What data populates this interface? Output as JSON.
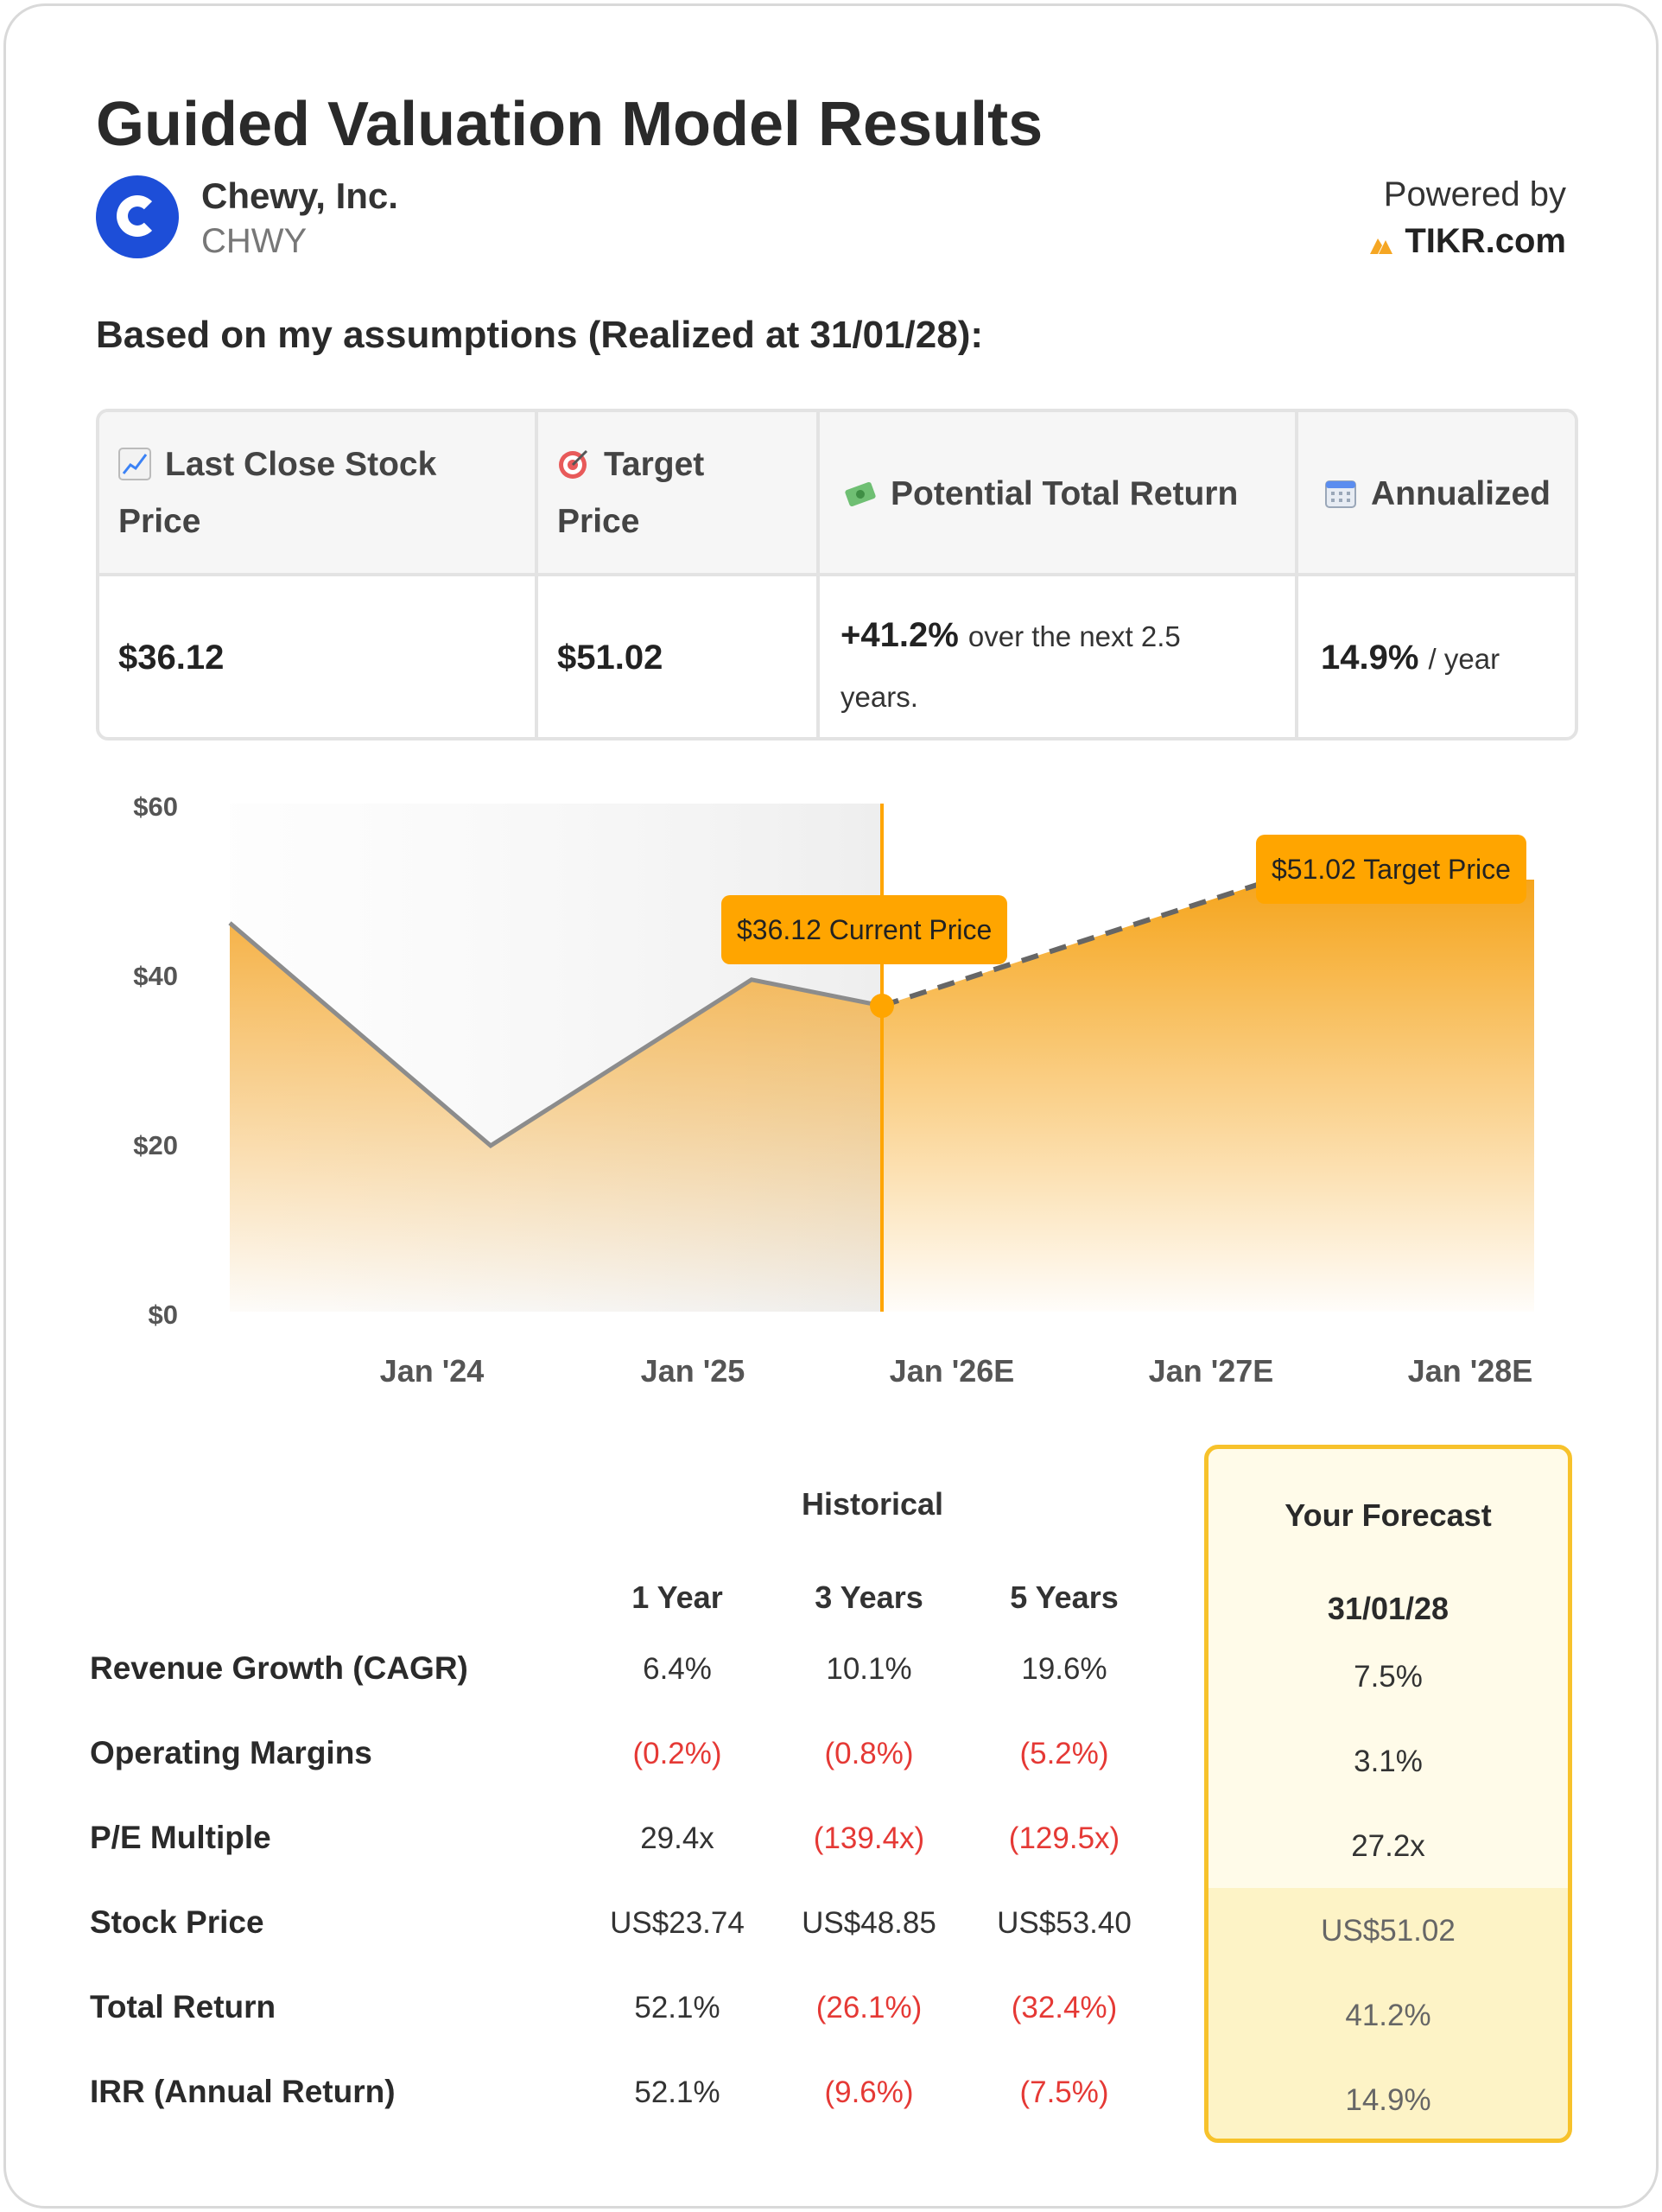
{
  "title": "Guided Valuation Model Results",
  "company": {
    "name": "Chewy, Inc.",
    "ticker": "CHWY"
  },
  "powered": {
    "label": "Powered by",
    "brand": "TIKR.com",
    "brand_color": "#f5a623"
  },
  "assumptions_heading": "Based on my assumptions (Realized at 31/01/28):",
  "summary": {
    "headers": {
      "last_close_line1": "Last Close Stock",
      "last_close_line2": "Price",
      "target_line1": "Target",
      "target_line2": "Price",
      "potential": "Potential Total Return",
      "annualized": "Annualized"
    },
    "icons": [
      "chart-increasing-icon",
      "target-icon",
      "money-flying-icon",
      "calendar-icon"
    ],
    "values": {
      "last_close": "$36.12",
      "target": "$51.02",
      "potential_value": "+41.2%",
      "potential_suffix_line1": "over the next 2.5",
      "potential_suffix_line2": "years.",
      "annualized_value": "14.9%",
      "annualized_suffix": "/ year"
    }
  },
  "chart_data": {
    "type": "area",
    "y_ticks": [
      "$60",
      "$40",
      "$20",
      "$0"
    ],
    "ylim": [
      0,
      60
    ],
    "x_ticks": [
      "Jan '24",
      "Jan '25",
      "Jan '26E",
      "Jan '27E",
      "Jan '28E"
    ],
    "historical": [
      {
        "x": 0.0,
        "y": 45.9
      },
      {
        "x": 1.0,
        "y": 19.6
      },
      {
        "x": 2.0,
        "y": 39.2
      },
      {
        "x": 2.5,
        "y": 36.12
      }
    ],
    "forecast": [
      {
        "x": 2.5,
        "y": 36.12
      },
      {
        "x": 4.0,
        "y": 51.02
      },
      {
        "x": 5.0,
        "y": 51.02
      }
    ],
    "current_price_label": "$36.12 Current Price",
    "target_price_label": "$51.02 Target Price",
    "colors": {
      "accent": "#ffa500",
      "line": "#8c8c8c"
    }
  },
  "metrics": {
    "historical_label": "Historical",
    "columns": [
      "1 Year",
      "3 Years",
      "5 Years"
    ],
    "forecast_title": "Your Forecast",
    "forecast_date": "31/01/28",
    "rows": [
      {
        "label": "Revenue Growth (CAGR)",
        "values": [
          "6.4%",
          "10.1%",
          "19.6%"
        ],
        "neg": [
          false,
          false,
          false
        ],
        "forecast": "7.5%"
      },
      {
        "label": "Operating Margins",
        "values": [
          "(0.2%)",
          "(0.8%)",
          "(5.2%)"
        ],
        "neg": [
          true,
          true,
          true
        ],
        "forecast": "3.1%"
      },
      {
        "label": "P/E Multiple",
        "values": [
          "29.4x",
          "(139.4x)",
          "(129.5x)"
        ],
        "neg": [
          false,
          true,
          true
        ],
        "forecast": "27.2x"
      },
      {
        "label": "Stock Price",
        "values": [
          "US$23.74",
          "US$48.85",
          "US$53.40"
        ],
        "neg": [
          false,
          false,
          false
        ],
        "forecast": "US$51.02"
      },
      {
        "label": "Total Return",
        "values": [
          "52.1%",
          "(26.1%)",
          "(32.4%)"
        ],
        "neg": [
          false,
          true,
          true
        ],
        "forecast": "41.2%"
      },
      {
        "label": "IRR (Annual Return)",
        "values": [
          "52.1%",
          "(9.6%)",
          "(7.5%)"
        ],
        "neg": [
          false,
          true,
          true
        ],
        "forecast": "14.9%"
      }
    ]
  }
}
